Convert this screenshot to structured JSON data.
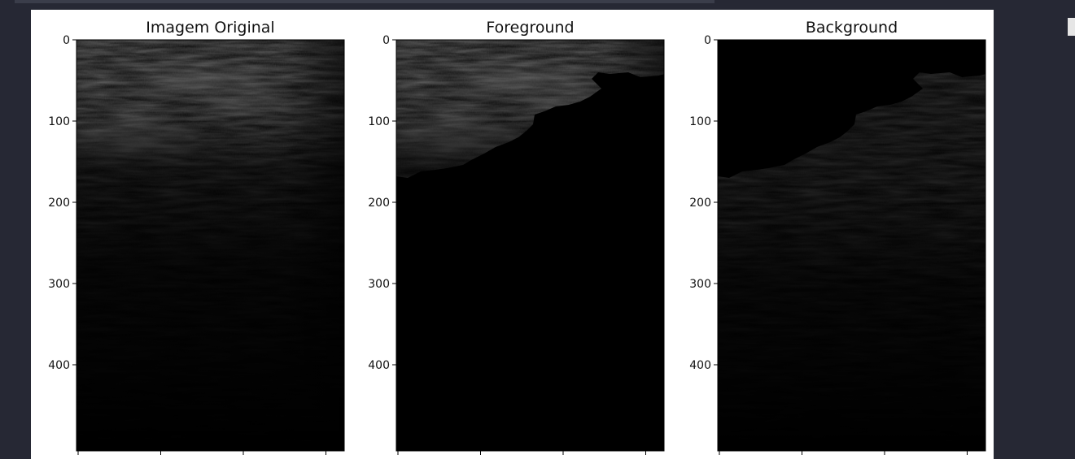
{
  "figure": {
    "panels": [
      {
        "title": "Imagem Original",
        "kind": "original"
      },
      {
        "title": "Foreground",
        "kind": "foreground"
      },
      {
        "title": "Background",
        "kind": "background"
      }
    ],
    "y_ticks": [
      "0",
      "100",
      "200",
      "300",
      "400"
    ],
    "y_tick_values": [
      0,
      100,
      200,
      300,
      400
    ],
    "ylim": [
      0,
      496
    ],
    "x_tick_count": 4
  }
}
